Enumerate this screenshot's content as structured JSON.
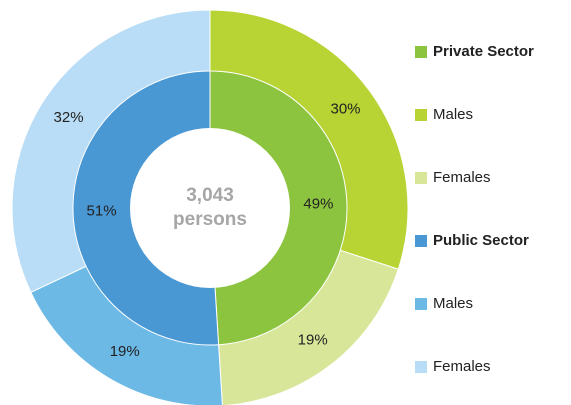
{
  "chart_data": {
    "type": "nested-donut",
    "total": 3043,
    "total_label": "3,043",
    "total_unit": "persons",
    "groups": [
      {
        "name": "Private Sector",
        "color": "#8dc43f",
        "value": 49,
        "value_label": "49%",
        "series": [
          {
            "name": "Males",
            "color": "#b7d334",
            "value": 30,
            "value_label": "30%"
          },
          {
            "name": "Females",
            "color": "#d8e69a",
            "value": 19,
            "value_label": "19%"
          }
        ]
      },
      {
        "name": "Public Sector",
        "color": "#4997d3",
        "value": 51,
        "value_label": "51%",
        "series": [
          {
            "name": "Males",
            "color": "#6cb9e6",
            "value": 19,
            "value_label": "19%"
          },
          {
            "name": "Females",
            "color": "#b9ddf6",
            "value": 32,
            "value_label": "32%"
          }
        ]
      }
    ]
  }
}
